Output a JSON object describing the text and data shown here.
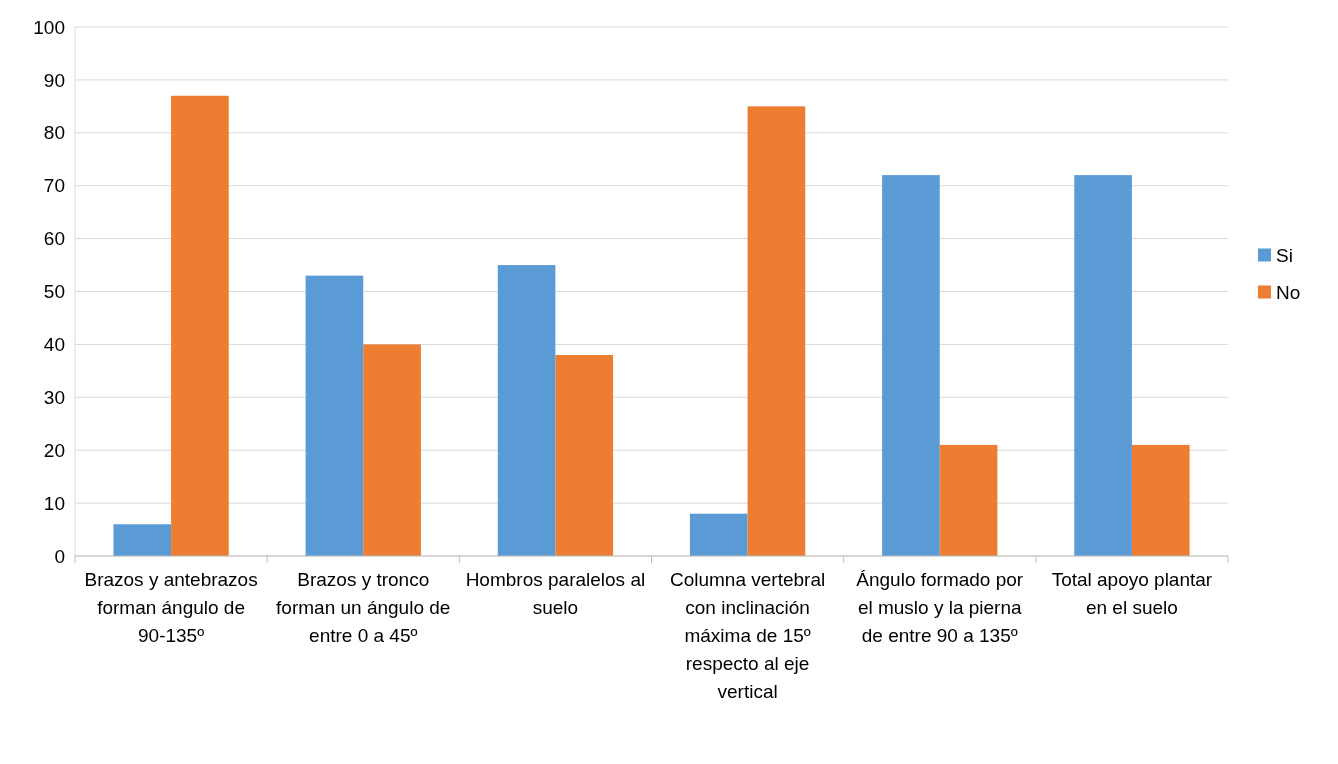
{
  "chart_data": {
    "type": "bar",
    "categories": [
      "Brazos y antebrazos forman ángulo de 90-135º",
      "Brazos y tronco forman un ángulo de entre 0 a 45º",
      "Hombros paralelos al suelo",
      "Columna vertebral con inclinación máxima de 15º respecto al eje vertical",
      "Ángulo formado por el muslo y la pierna de entre 90 a 135º",
      "Total apoyo plantar en el suelo"
    ],
    "series": [
      {
        "name": "Si",
        "color": "#5b9bd5",
        "values": [
          6,
          53,
          55,
          8,
          72,
          72
        ]
      },
      {
        "name": "No",
        "color": "#ed7d31",
        "values": [
          87,
          40,
          38,
          85,
          21,
          21
        ]
      }
    ],
    "ylim": [
      0,
      100
    ],
    "yticks": [
      0,
      10,
      20,
      30,
      40,
      50,
      60,
      70,
      80,
      90,
      100
    ],
    "grid": "y",
    "legend": "right"
  }
}
